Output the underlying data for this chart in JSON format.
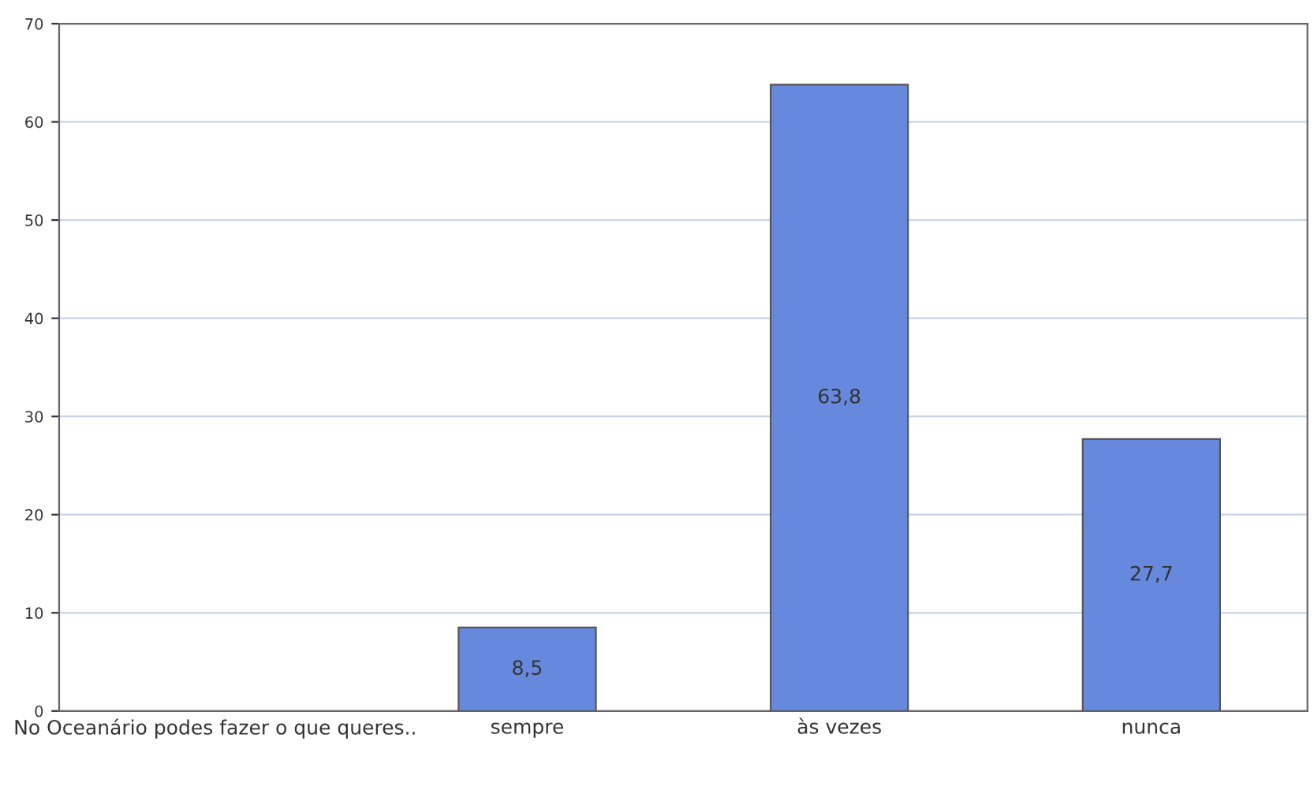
{
  "chart_data": {
    "type": "bar",
    "categories": [
      "No Oceanário podes fazer o que queres..",
      "sempre",
      "às vezes",
      "nunca"
    ],
    "values": [
      null,
      8.5,
      63.8,
      27.7
    ],
    "value_labels": [
      null,
      "8,5",
      "63,8",
      "27,7"
    ],
    "color": "#6688dd",
    "ylim": [
      0,
      70
    ],
    "yticks": [
      0,
      10,
      20,
      30,
      40,
      50,
      60,
      70
    ],
    "grid": "y",
    "legend": false
  }
}
